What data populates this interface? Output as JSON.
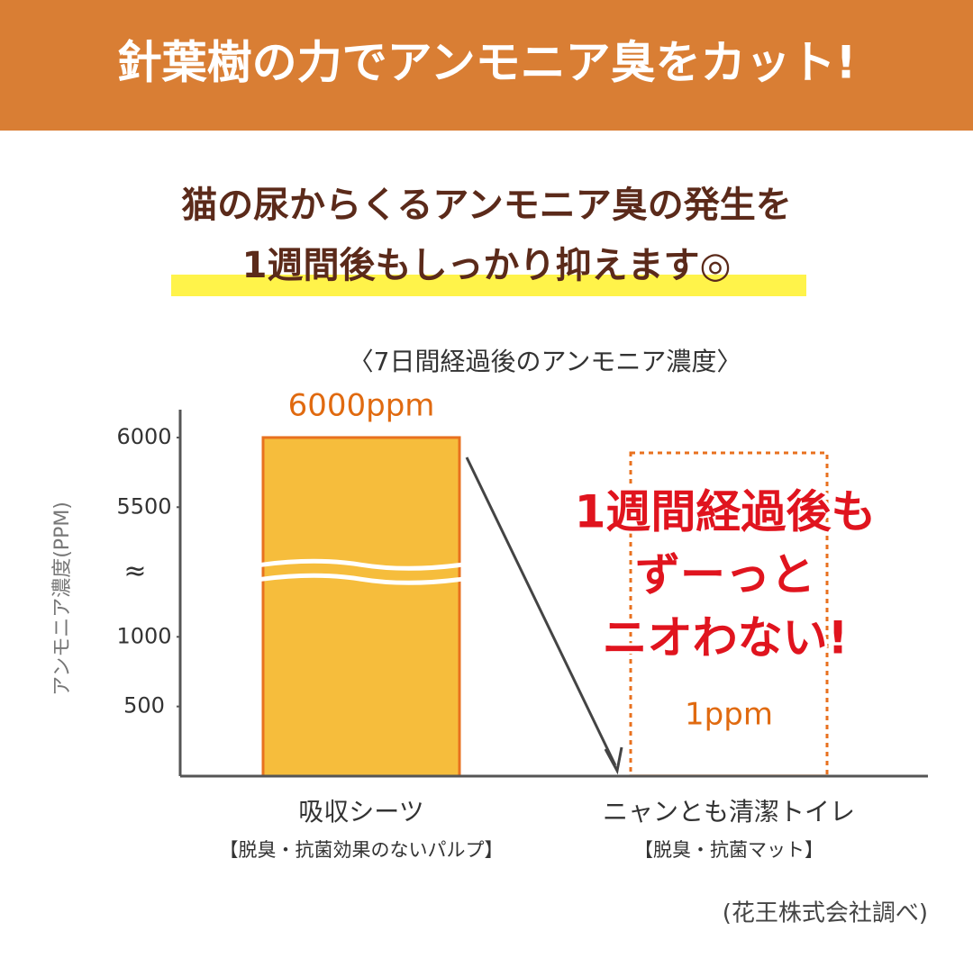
{
  "header": {
    "title": "針葉樹の力でアンモニア臭をカット!"
  },
  "headline": {
    "lines": [
      "猫の尿からくるアンモニア臭の発生を",
      "1週間後もしっかり抑えます◎"
    ]
  },
  "chart_data": {
    "type": "bar",
    "title": "〈7日間経過後のアンモニア濃度〉",
    "y_label": "アンモニア濃度(PPM)",
    "categories": [
      "吸収シーツ",
      "ニャンとも清潔トイレ"
    ],
    "category_notes": [
      "【脱臭・抗菌効果のないパルプ】",
      "【脱臭・抗菌マット】"
    ],
    "values": [
      6000,
      1
    ],
    "value_labels": [
      "6000ppm",
      "1ppm"
    ],
    "colors": [
      "#f6bd3c",
      "#f6bd3c"
    ],
    "edge_color": "#e8711f",
    "ylim": [
      0,
      6200
    ],
    "yticks": [
      500,
      1000,
      5500,
      6000
    ],
    "axis_break_label": "≈",
    "annotation": [
      "1週間経過後も",
      "ずーっと",
      "ニオわない!"
    ]
  },
  "source": "(花王株式会社調べ)"
}
